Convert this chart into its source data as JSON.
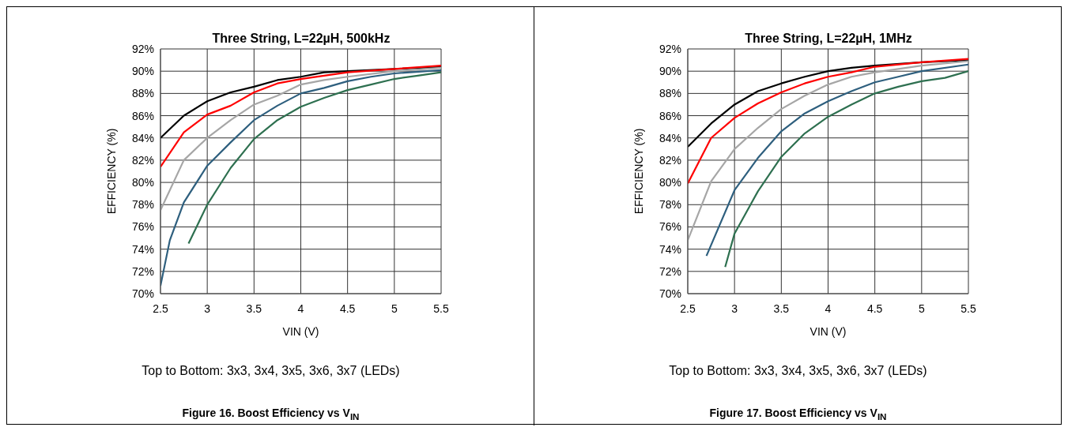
{
  "chart_data": [
    {
      "type": "line",
      "title": "Three String, L=22µH, 500kHz",
      "xlabel": "VIN (V)",
      "ylabel": "EFFICIENCY (%)",
      "xlim": [
        2.5,
        5.5
      ],
      "xticks": [
        2.5,
        3,
        3.5,
        4,
        4.5,
        5,
        5.5
      ],
      "ylim": [
        70,
        92
      ],
      "yticks": [
        {
          "value": 70,
          "label": "70%"
        },
        {
          "value": 72,
          "label": "72%"
        },
        {
          "value": 74,
          "label": "74%"
        },
        {
          "value": 76,
          "label": "76%"
        },
        {
          "value": 78,
          "label": "78%"
        },
        {
          "value": 80,
          "label": "80%"
        },
        {
          "value": 82,
          "label": "82%"
        },
        {
          "value": 84,
          "label": "84%"
        },
        {
          "value": 86,
          "label": "86%"
        },
        {
          "value": 88,
          "label": "88%"
        },
        {
          "value": 90,
          "label": "90%"
        },
        {
          "value": 92,
          "label": "92%"
        }
      ],
      "grid": true,
      "line_style": "solid",
      "marker": "none",
      "series": [
        {
          "color": "#000000",
          "x": [
            2.5,
            2.75,
            3,
            3.25,
            3.5,
            3.75,
            4,
            4.25,
            4.5,
            5,
            5.5
          ],
          "values": [
            84.0,
            86.0,
            87.3,
            88.1,
            88.6,
            89.2,
            89.5,
            89.9,
            90.0,
            90.2,
            90.4
          ]
        },
        {
          "color": "#ff0000",
          "x": [
            2.5,
            2.75,
            3,
            3.25,
            3.5,
            3.75,
            4,
            4.25,
            4.5,
            5,
            5.5
          ],
          "values": [
            81.4,
            84.5,
            86.1,
            86.9,
            88.1,
            88.9,
            89.3,
            89.6,
            89.9,
            90.2,
            90.5
          ]
        },
        {
          "color": "#a6a6a6",
          "x": [
            2.5,
            2.75,
            3,
            3.25,
            3.5,
            3.75,
            4,
            4.25,
            4.5,
            5,
            5.5
          ],
          "values": [
            77.5,
            82.0,
            84.0,
            85.6,
            87.0,
            87.8,
            88.8,
            89.2,
            89.5,
            90.0,
            90.3
          ]
        },
        {
          "color": "#2e5f7e",
          "x": [
            2.5,
            2.6,
            2.75,
            3,
            3.25,
            3.5,
            3.75,
            4,
            4.25,
            4.5,
            4.75,
            5,
            5.5
          ],
          "values": [
            70.7,
            74.8,
            78.2,
            81.5,
            83.6,
            85.6,
            86.9,
            88.0,
            88.5,
            89.1,
            89.5,
            89.8,
            90.1
          ]
        },
        {
          "color": "#2e7050",
          "x": [
            2.8,
            3,
            3.25,
            3.5,
            3.75,
            4,
            4.25,
            4.5,
            4.75,
            5,
            5.25,
            5.5
          ],
          "values": [
            74.5,
            78.0,
            81.3,
            83.9,
            85.6,
            86.8,
            87.6,
            88.3,
            88.8,
            89.3,
            89.6,
            89.9
          ]
        }
      ],
      "annotations": [
        "Top to Bottom: 3x3, 3x4, 3x5, 3x6, 3x7 (LEDs)",
        "Figure 16. Boost Efficiency vs V$_{IN}$"
      ]
    },
    {
      "type": "line",
      "title": "Three String, L=22µH, 1MHz",
      "xlabel": "VIN (V)",
      "ylabel": "EFFICIENCY (%)",
      "xlim": [
        2.5,
        5.5
      ],
      "xticks": [
        2.5,
        3,
        3.5,
        4,
        4.5,
        5,
        5.5
      ],
      "ylim": [
        70,
        92
      ],
      "yticks": [
        {
          "value": 70,
          "label": "70%"
        },
        {
          "value": 72,
          "label": "72%"
        },
        {
          "value": 74,
          "label": "74%"
        },
        {
          "value": 76,
          "label": "76%"
        },
        {
          "value": 78,
          "label": "78%"
        },
        {
          "value": 80,
          "label": "80%"
        },
        {
          "value": 82,
          "label": "82%"
        },
        {
          "value": 84,
          "label": "84%"
        },
        {
          "value": 86,
          "label": "86%"
        },
        {
          "value": 88,
          "label": "88%"
        },
        {
          "value": 90,
          "label": "90%"
        },
        {
          "value": 92,
          "label": "92%"
        }
      ],
      "grid": true,
      "line_style": "solid",
      "marker": "none",
      "series": [
        {
          "color": "#000000",
          "x": [
            2.5,
            2.75,
            3,
            3.25,
            3.5,
            3.75,
            4,
            4.25,
            4.5,
            5,
            5.5
          ],
          "values": [
            83.2,
            85.3,
            87.0,
            88.2,
            88.9,
            89.5,
            90.0,
            90.3,
            90.5,
            90.8,
            91.0
          ]
        },
        {
          "color": "#ff0000",
          "x": [
            2.5,
            2.75,
            3,
            3.25,
            3.5,
            3.75,
            4,
            4.25,
            4.5,
            5,
            5.5
          ],
          "values": [
            79.9,
            84.0,
            85.8,
            87.1,
            88.1,
            88.9,
            89.5,
            89.9,
            90.4,
            90.8,
            91.1
          ]
        },
        {
          "color": "#a6a6a6",
          "x": [
            2.5,
            2.75,
            3,
            3.25,
            3.5,
            3.75,
            4,
            4.25,
            4.5,
            5,
            5.5
          ],
          "values": [
            74.8,
            80.1,
            83.0,
            84.9,
            86.6,
            87.8,
            88.8,
            89.5,
            89.9,
            90.5,
            90.9
          ]
        },
        {
          "color": "#2e5f7e",
          "x": [
            2.7,
            3,
            3.25,
            3.5,
            3.75,
            4,
            4.25,
            4.5,
            4.75,
            5,
            5.5
          ],
          "values": [
            73.4,
            79.3,
            82.2,
            84.6,
            86.2,
            87.3,
            88.2,
            89.0,
            89.5,
            90.0,
            90.6
          ]
        },
        {
          "color": "#2e7050",
          "x": [
            2.9,
            3,
            3.25,
            3.5,
            3.75,
            4,
            4.25,
            4.5,
            4.75,
            5,
            5.25,
            5.5
          ],
          "values": [
            72.4,
            75.4,
            79.2,
            82.3,
            84.4,
            85.9,
            87.0,
            88.0,
            88.6,
            89.1,
            89.4,
            90.0
          ]
        }
      ],
      "annotations": [
        "Top to Bottom: 3x3, 3x4, 3x5, 3x6, 3x7 (LEDs)",
        "Figure 17. Boost Efficiency vs V$_{IN}$"
      ]
    }
  ]
}
